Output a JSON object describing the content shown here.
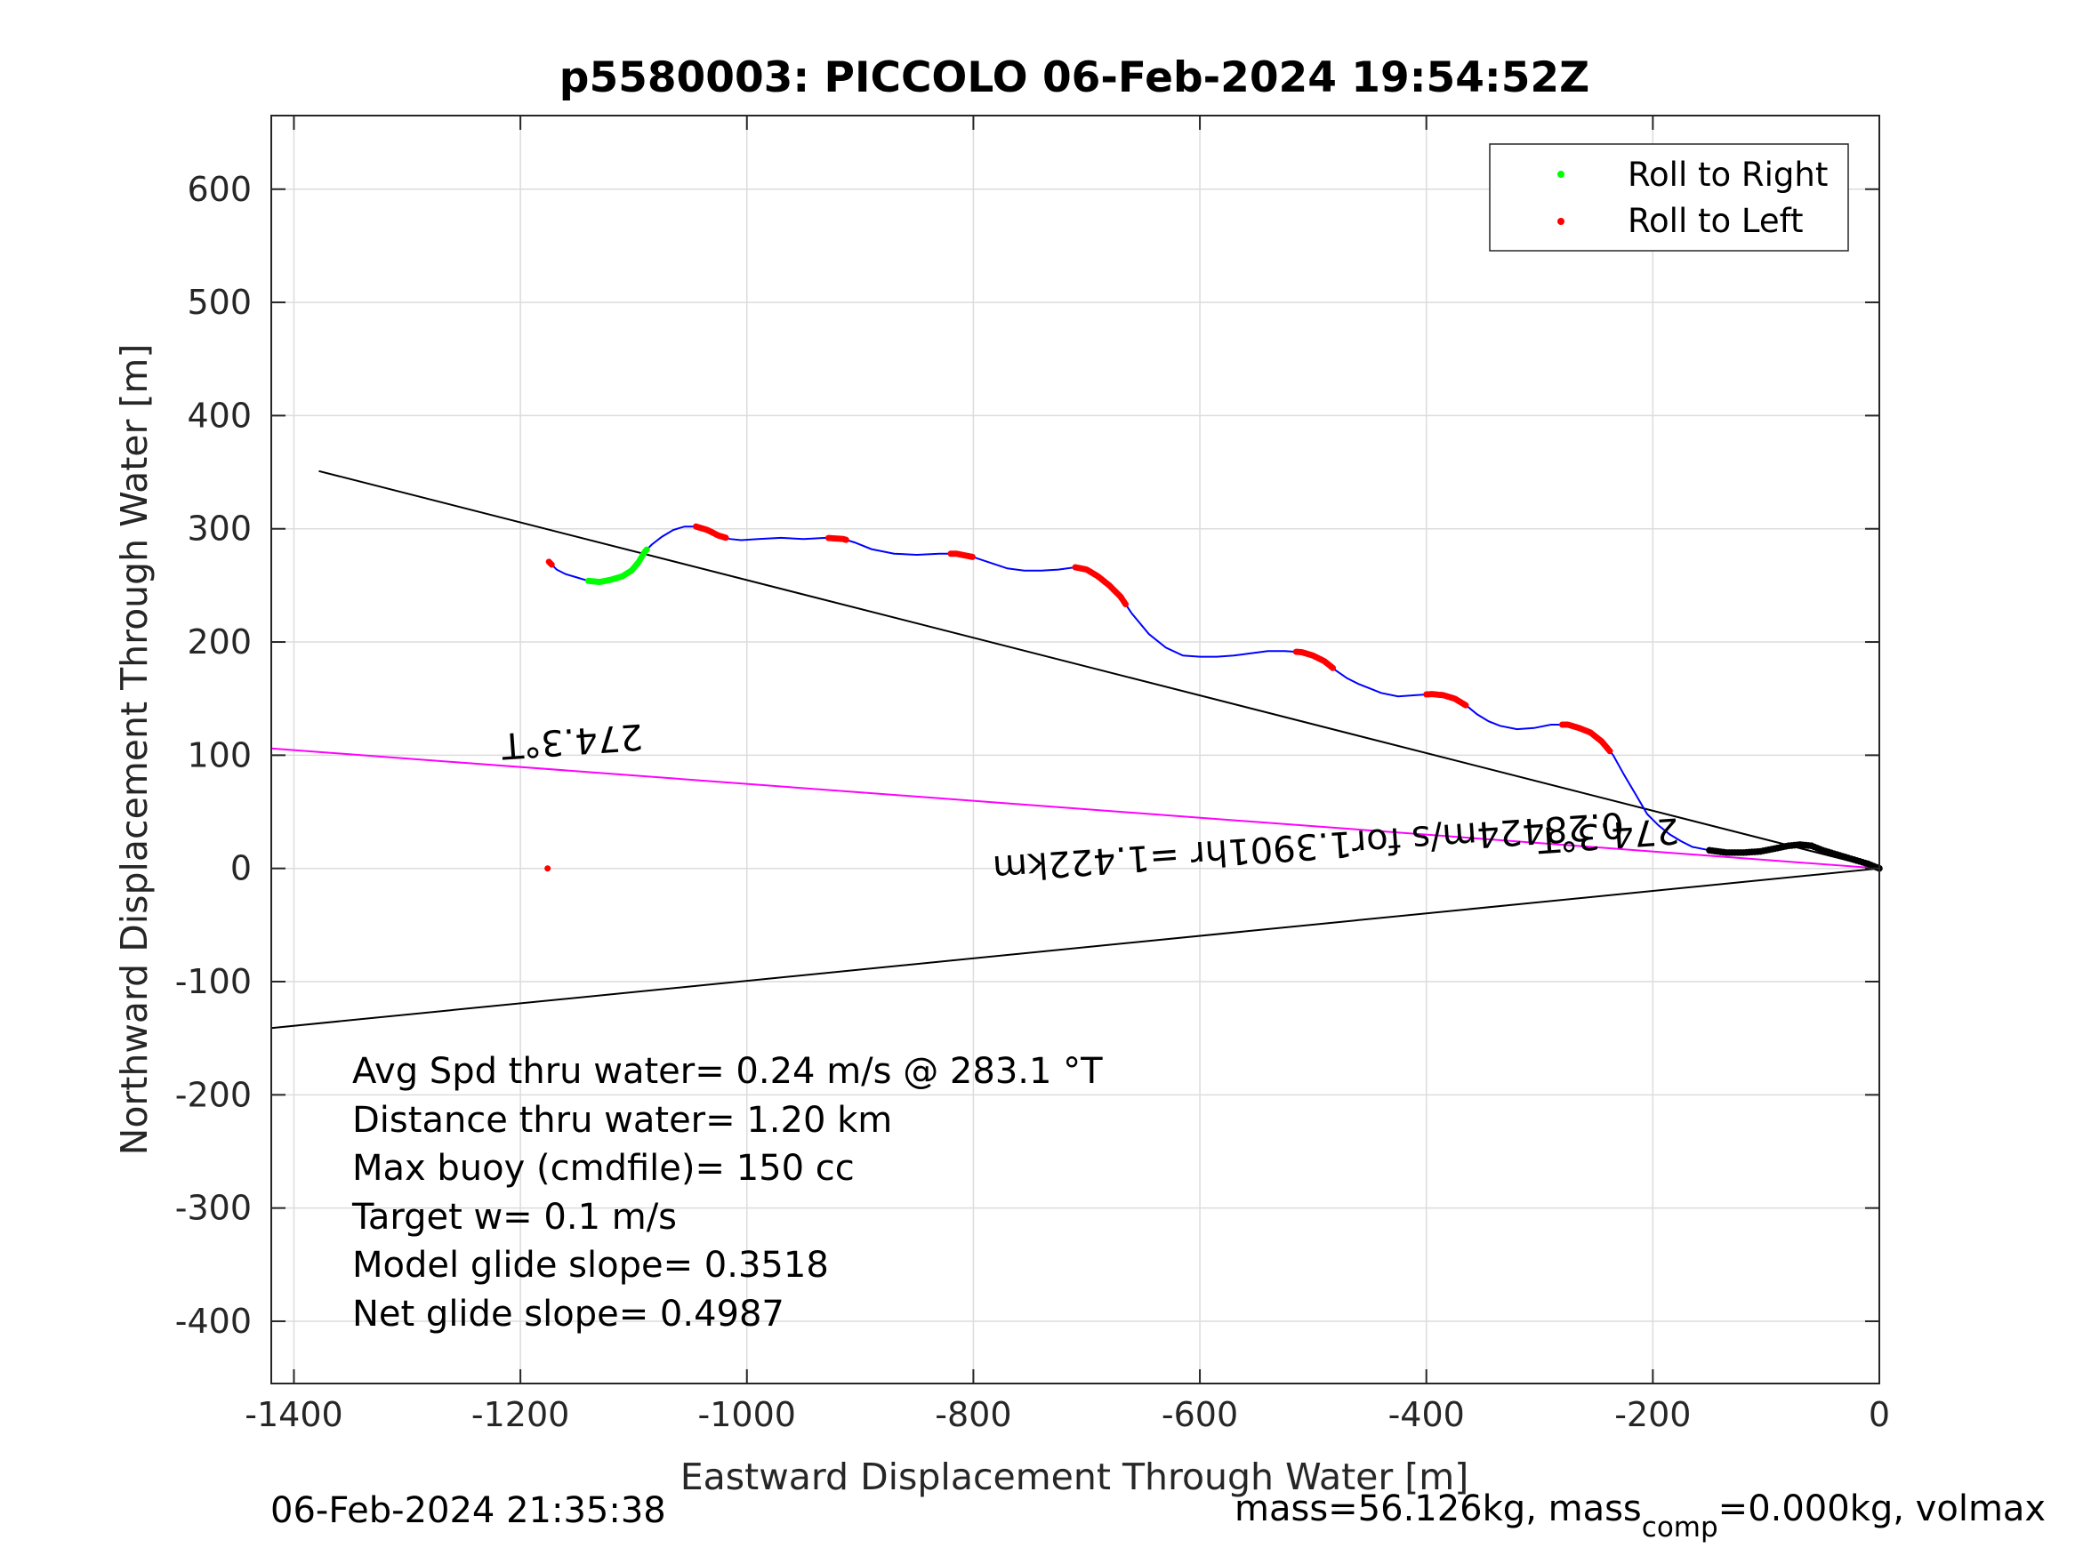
{
  "chart_data": {
    "type": "line",
    "title": "p5580003: PICCOLO 06-Feb-2024 19:54:52Z",
    "xlabel": "Eastward Displacement Through Water [m]",
    "ylabel": "Northward Displacement Through Water [m]",
    "xlim": [
      -1420,
      0
    ],
    "ylim": [
      -455,
      665
    ],
    "xticks": [
      -1400,
      -1200,
      -1000,
      -800,
      -600,
      -400,
      -200,
      0
    ],
    "yticks": [
      600,
      500,
      400,
      300,
      200,
      100,
      0,
      -100,
      -200,
      -300,
      -400
    ],
    "grid": true,
    "legend_position": "top-right",
    "legend": [
      {
        "label": "Roll to Right",
        "color": "#00ff00"
      },
      {
        "label": "Roll to Left",
        "color": "#ff0000"
      }
    ],
    "colors": {
      "track": "#0000ff",
      "reference": "#000000",
      "current": "#ff00ff"
    },
    "track": {
      "x": [
        -1175,
        -1168,
        -1160,
        -1150,
        -1140,
        -1130,
        -1120,
        -1110,
        -1102,
        -1096,
        -1090,
        -1084,
        -1075,
        -1065,
        -1055,
        -1045,
        -1035,
        -1025,
        -1015,
        -1005,
        -990,
        -970,
        -950,
        -930,
        -915,
        -905,
        -890,
        -870,
        -850,
        -830,
        -815,
        -800,
        -785,
        -770,
        -755,
        -740,
        -725,
        -710,
        -700,
        -690,
        -680,
        -670,
        -660,
        -645,
        -630,
        -615,
        -600,
        -585,
        -570,
        -555,
        -540,
        -525,
        -510,
        -500,
        -490,
        -480,
        -470,
        -460,
        -450,
        -440,
        -425,
        -410,
        -395,
        -385,
        -375,
        -365,
        -355,
        -345,
        -335,
        -320,
        -305,
        -290,
        -275,
        -265,
        -255,
        -245,
        -235,
        -225,
        -215,
        -205,
        -195,
        -185,
        -175,
        -165,
        -150,
        -135,
        -120,
        -105,
        -90,
        -80,
        -70,
        -60,
        -50,
        -40,
        -30,
        -20,
        -10,
        0
      ],
      "y": [
        271,
        264,
        260,
        257,
        254,
        253,
        255,
        258,
        263,
        270,
        280,
        286,
        293,
        299,
        302,
        302,
        299,
        294,
        291,
        290,
        291,
        292,
        291,
        292,
        291,
        288,
        282,
        278,
        277,
        278,
        278,
        275,
        270,
        265,
        263,
        263,
        264,
        266,
        264,
        258,
        250,
        240,
        225,
        207,
        195,
        188,
        187,
        187,
        188,
        190,
        192,
        192,
        191,
        188,
        183,
        175,
        168,
        163,
        159,
        155,
        152,
        153,
        154,
        153,
        150,
        144,
        136,
        130,
        126,
        123,
        124,
        127,
        127,
        124,
        120,
        112,
        100,
        82,
        65,
        48,
        38,
        30,
        24,
        19,
        16,
        14,
        14,
        15,
        18,
        20,
        21,
        20,
        16,
        13,
        10,
        7,
        4,
        0
      ]
    },
    "roll_right_segments": [
      {
        "x_from": -1140,
        "x_to": -1088
      }
    ],
    "roll_left_segments": [
      {
        "x_from": -1045,
        "x_to": -1018
      },
      {
        "x_from": -928,
        "x_to": -912
      },
      {
        "x_from": -820,
        "x_to": -800
      },
      {
        "x_from": -710,
        "x_to": -665
      },
      {
        "x_from": -515,
        "x_to": -482
      },
      {
        "x_from": -400,
        "x_to": -365
      },
      {
        "x_from": -280,
        "x_to": -238
      },
      {
        "x_from": -1176,
        "x_to": -1172
      },
      {
        "x_from": -75,
        "x_to": -58
      }
    ],
    "ref_lines": [
      {
        "x": [
          -1378,
          0
        ],
        "y": [
          351,
          0
        ],
        "color": "#000000"
      },
      {
        "x": [
          -1420,
          0
        ],
        "y": [
          106,
          0
        ],
        "color": "#ff00ff"
      },
      {
        "x": [
          -1420,
          0
        ],
        "y": [
          -141,
          0
        ],
        "color": "#000000"
      }
    ],
    "black_markers": {
      "x_from": -150,
      "x_to": 0
    },
    "annotations": [
      {
        "text": "274.3°T",
        "x": -1155,
        "y": 123,
        "rotation": 176
      },
      {
        "text": "274.3°T",
        "x": -240,
        "y": 40,
        "rotation": 176
      },
      {
        "text": "0.28424m/s for1.3901hr =1.422km",
        "x": -505,
        "y": 30,
        "rotation": 176
      }
    ],
    "stats_lines": [
      "Avg Spd thru water=  0.24 m/s @ 283.1 °T",
      "Distance thru water=  1.20 km",
      "Max buoy (cmdfile)= 150 cc",
      "Target w= 0.1 m/s",
      "Model glide slope= 0.3518",
      "Net glide slope= 0.4987"
    ]
  },
  "footer": {
    "timestamp": "06-Feb-2024 21:35:38",
    "mass_prefix": "mass=56.126kg, mass",
    "mass_sub": "comp",
    "mass_suffix": "=0.000kg, volmax"
  }
}
